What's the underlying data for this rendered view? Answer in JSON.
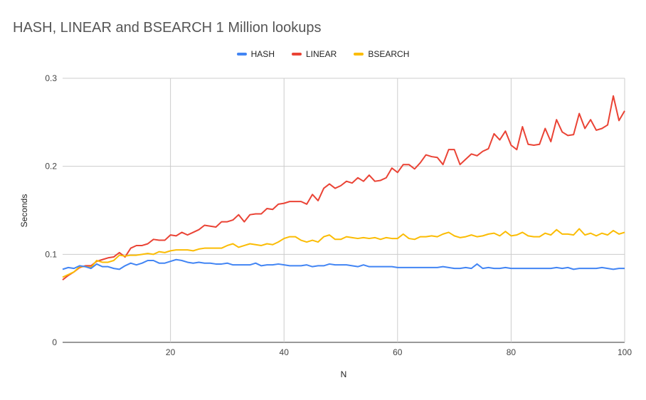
{
  "chart_data": {
    "type": "line",
    "title": "HASH, LINEAR and BSEARCH 1 Million lookups",
    "xlabel": "N",
    "ylabel": "Seconds",
    "xlim": [
      1,
      100
    ],
    "ylim": [
      0,
      0.3
    ],
    "x_ticks": [
      20,
      40,
      60,
      80,
      100
    ],
    "y_ticks": [
      0,
      0.1,
      0.2,
      0.3
    ],
    "y_tick_labels": [
      "0",
      "0.1",
      "0.2",
      "0.3"
    ],
    "grid": true,
    "legend_position": "top-center",
    "x": [
      1,
      2,
      3,
      4,
      5,
      6,
      7,
      8,
      9,
      10,
      11,
      12,
      13,
      14,
      15,
      16,
      17,
      18,
      19,
      20,
      21,
      22,
      23,
      24,
      25,
      26,
      27,
      28,
      29,
      30,
      31,
      32,
      33,
      34,
      35,
      36,
      37,
      38,
      39,
      40,
      41,
      42,
      43,
      44,
      45,
      46,
      47,
      48,
      49,
      50,
      51,
      52,
      53,
      54,
      55,
      56,
      57,
      58,
      59,
      60,
      61,
      62,
      63,
      64,
      65,
      66,
      67,
      68,
      69,
      70,
      71,
      72,
      73,
      74,
      75,
      76,
      77,
      78,
      79,
      80,
      81,
      82,
      83,
      84,
      85,
      86,
      87,
      88,
      89,
      90,
      91,
      92,
      93,
      94,
      95,
      96,
      97,
      98,
      99,
      100
    ],
    "series": [
      {
        "name": "HASH",
        "color": "#4285f4",
        "values": [
          0.083,
          0.085,
          0.084,
          0.087,
          0.086,
          0.084,
          0.089,
          0.086,
          0.086,
          0.084,
          0.083,
          0.087,
          0.09,
          0.088,
          0.09,
          0.093,
          0.093,
          0.09,
          0.09,
          0.092,
          0.094,
          0.093,
          0.091,
          0.09,
          0.091,
          0.09,
          0.09,
          0.089,
          0.089,
          0.09,
          0.088,
          0.088,
          0.088,
          0.088,
          0.09,
          0.087,
          0.088,
          0.088,
          0.089,
          0.088,
          0.087,
          0.087,
          0.087,
          0.088,
          0.086,
          0.087,
          0.087,
          0.089,
          0.088,
          0.088,
          0.088,
          0.087,
          0.086,
          0.088,
          0.086,
          0.086,
          0.086,
          0.086,
          0.086,
          0.085,
          0.085,
          0.085,
          0.085,
          0.085,
          0.085,
          0.085,
          0.085,
          0.086,
          0.085,
          0.084,
          0.084,
          0.085,
          0.084,
          0.089,
          0.084,
          0.085,
          0.084,
          0.084,
          0.085,
          0.084,
          0.084,
          0.084,
          0.084,
          0.084,
          0.084,
          0.084,
          0.084,
          0.085,
          0.084,
          0.085,
          0.083,
          0.084,
          0.084,
          0.084,
          0.084,
          0.085,
          0.084,
          0.083,
          0.084,
          0.084
        ]
      },
      {
        "name": "LINEAR",
        "color": "#ea4335",
        "values": [
          0.071,
          0.076,
          0.08,
          0.085,
          0.087,
          0.087,
          0.092,
          0.094,
          0.096,
          0.097,
          0.102,
          0.097,
          0.107,
          0.11,
          0.11,
          0.112,
          0.117,
          0.116,
          0.116,
          0.122,
          0.121,
          0.125,
          0.122,
          0.125,
          0.128,
          0.133,
          0.132,
          0.131,
          0.137,
          0.137,
          0.139,
          0.145,
          0.137,
          0.145,
          0.146,
          0.146,
          0.152,
          0.151,
          0.157,
          0.158,
          0.16,
          0.16,
          0.16,
          0.157,
          0.168,
          0.161,
          0.175,
          0.18,
          0.175,
          0.178,
          0.183,
          0.181,
          0.187,
          0.183,
          0.19,
          0.183,
          0.184,
          0.187,
          0.198,
          0.193,
          0.202,
          0.202,
          0.197,
          0.204,
          0.213,
          0.211,
          0.21,
          0.202,
          0.219,
          0.219,
          0.202,
          0.208,
          0.214,
          0.212,
          0.217,
          0.22,
          0.237,
          0.23,
          0.24,
          0.224,
          0.219,
          0.245,
          0.225,
          0.224,
          0.225,
          0.243,
          0.228,
          0.253,
          0.239,
          0.235,
          0.236,
          0.26,
          0.243,
          0.253,
          0.241,
          0.243,
          0.247,
          0.28,
          0.252,
          0.263
        ]
      },
      {
        "name": "BSEARCH",
        "color": "#fbbc04",
        "values": [
          0.074,
          0.077,
          0.08,
          0.086,
          0.086,
          0.085,
          0.093,
          0.091,
          0.091,
          0.093,
          0.099,
          0.098,
          0.099,
          0.099,
          0.1,
          0.101,
          0.1,
          0.103,
          0.102,
          0.104,
          0.105,
          0.105,
          0.105,
          0.104,
          0.106,
          0.107,
          0.107,
          0.107,
          0.107,
          0.11,
          0.112,
          0.108,
          0.11,
          0.112,
          0.111,
          0.11,
          0.112,
          0.111,
          0.114,
          0.118,
          0.12,
          0.12,
          0.116,
          0.114,
          0.116,
          0.114,
          0.12,
          0.122,
          0.117,
          0.117,
          0.12,
          0.119,
          0.118,
          0.119,
          0.118,
          0.119,
          0.117,
          0.119,
          0.118,
          0.118,
          0.123,
          0.118,
          0.117,
          0.12,
          0.12,
          0.121,
          0.12,
          0.123,
          0.125,
          0.121,
          0.119,
          0.12,
          0.122,
          0.12,
          0.121,
          0.123,
          0.124,
          0.121,
          0.126,
          0.121,
          0.122,
          0.125,
          0.121,
          0.12,
          0.12,
          0.124,
          0.122,
          0.128,
          0.123,
          0.123,
          0.122,
          0.129,
          0.122,
          0.124,
          0.121,
          0.124,
          0.122,
          0.127,
          0.123,
          0.125
        ]
      }
    ]
  }
}
